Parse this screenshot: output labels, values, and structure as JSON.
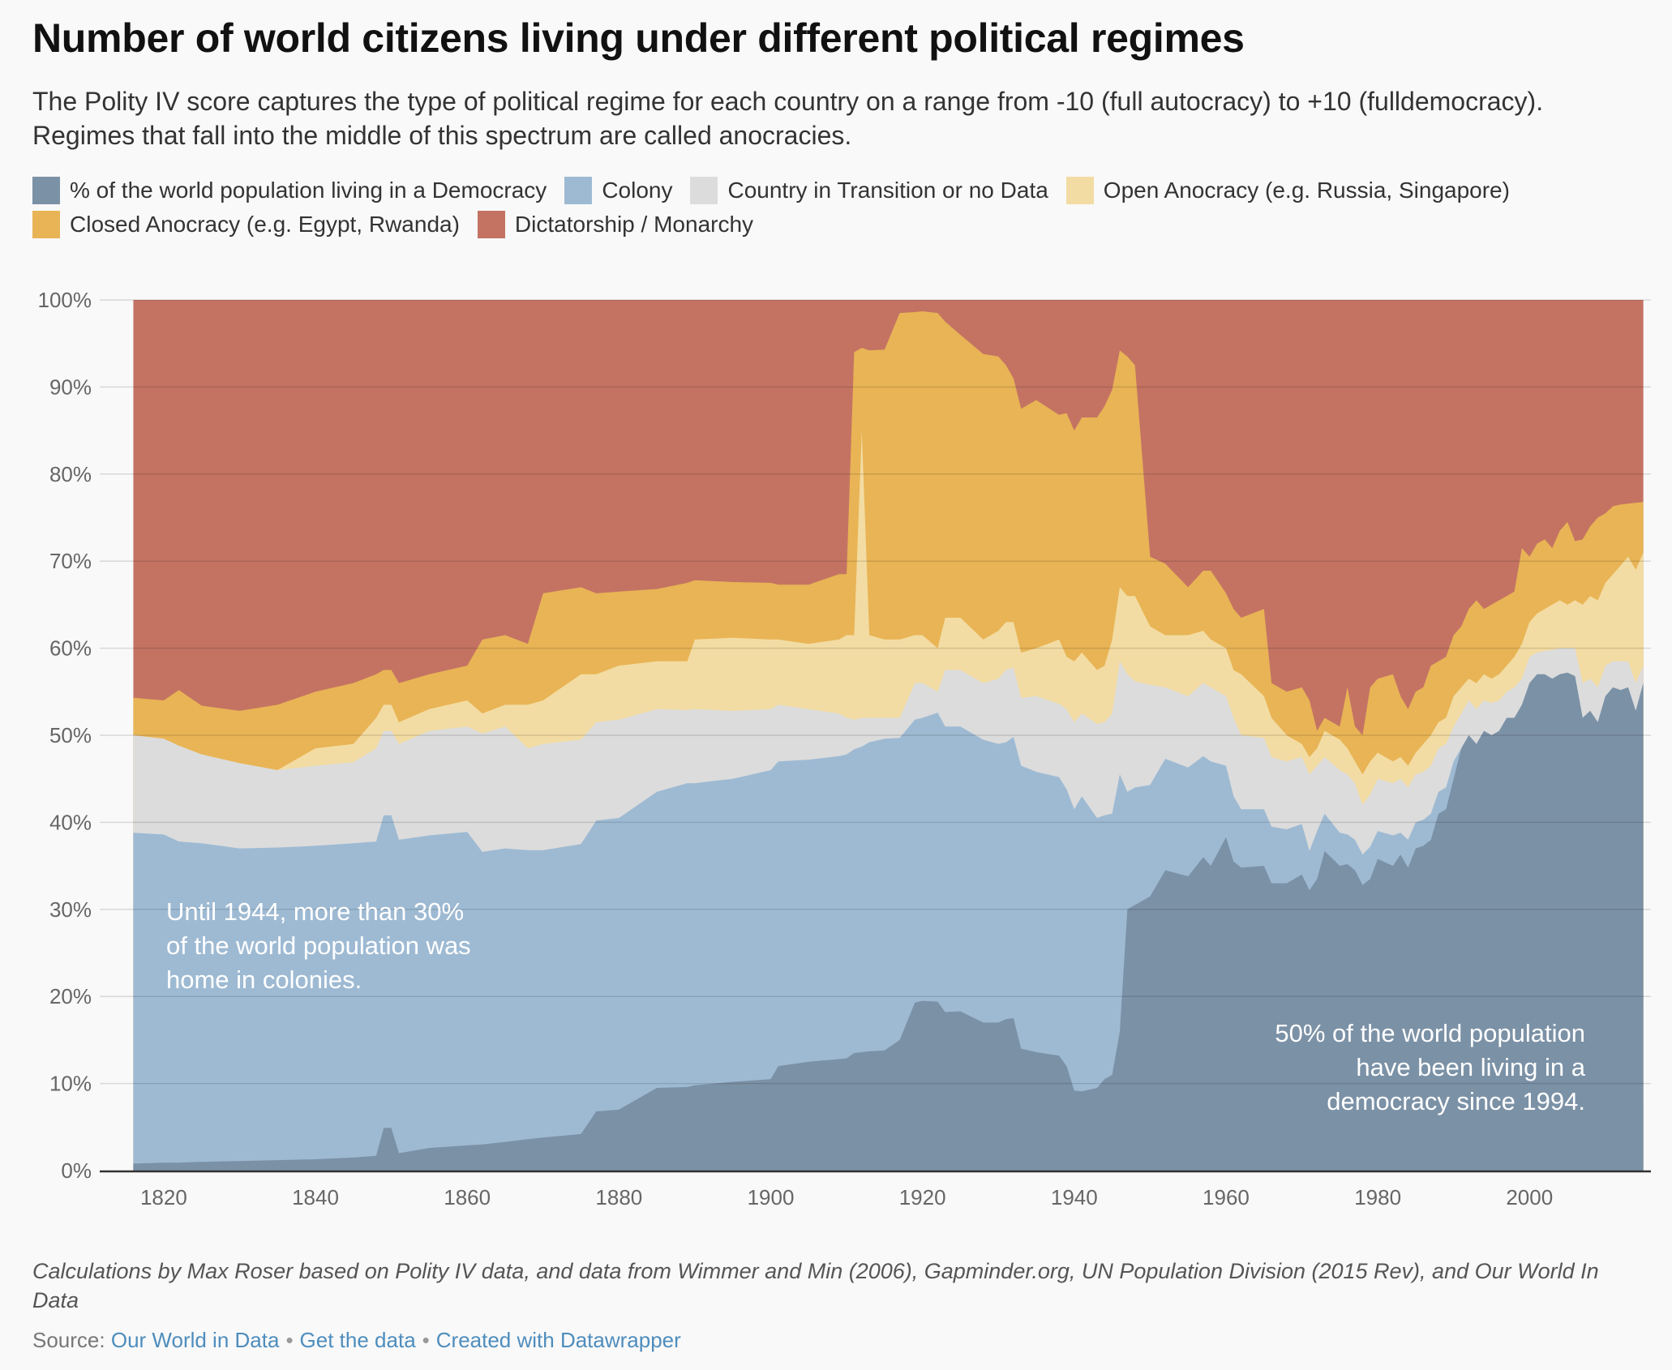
{
  "header": {
    "title": "Number of world citizens living under different political regimes",
    "subtitle": "The Polity IV score captures the type of political regime for each country on a range from -10 (full autocracy) to +10 (fulldemocracy). Regimes that fall into the middle of this spectrum are called anocracies."
  },
  "legend": [
    {
      "label": "% of the world population living in a Democracy",
      "color": "#7b91a6"
    },
    {
      "label": "Colony",
      "color": "#9ebad3"
    },
    {
      "label": "Country in Transition or no Data",
      "color": "#dcdcdc"
    },
    {
      "label": "Open Anocracy (e.g. Russia, Singapore)",
      "color": "#f3dca3"
    },
    {
      "label": "Closed Anocracy (e.g. Egypt, Rwanda)",
      "color": "#e8b455"
    },
    {
      "label": "Dictatorship / Monarchy",
      "color": "#c47363"
    }
  ],
  "annotations": {
    "left": "Until 1944, more than 30% of the world population was home in colonies.",
    "right": "50% of the world population have been living in a democracy since 1994."
  },
  "footer": {
    "notes": "Calculations by Max Roser based on Polity IV data, and data from Wimmer and Min (2006), Gapminder.org, UN Population Division (2015 Rev), and Our World In Data",
    "source_prefix": "Source:",
    "source_link": "Our World in Data",
    "get_data": "Get the data",
    "created_with": "Created with Datawrapper"
  },
  "chart_data": {
    "type": "area",
    "stacked": true,
    "xlim": [
      1812,
      2016
    ],
    "ylim": [
      0,
      100
    ],
    "x_ticks": [
      1820,
      1840,
      1860,
      1880,
      1900,
      1920,
      1940,
      1960,
      1980,
      2000
    ],
    "y_ticks": [
      0,
      10,
      20,
      30,
      40,
      50,
      60,
      70,
      80,
      90,
      100
    ],
    "y_tick_labels": [
      "0%",
      "10%",
      "20%",
      "30%",
      "40%",
      "50%",
      "60%",
      "70%",
      "80%",
      "90%",
      "100%"
    ],
    "grid": true,
    "legend_position": "top",
    "boundaries_note": "cumulative top edges in percent for the first five series; Dictatorship / Monarchy fills up to 100",
    "x": [
      1816,
      1820,
      1822,
      1825,
      1830,
      1835,
      1840,
      1845,
      1848,
      1849,
      1850,
      1851,
      1855,
      1860,
      1862,
      1865,
      1868,
      1870,
      1875,
      1877,
      1880,
      1885,
      1889,
      1890,
      1895,
      1900,
      1901,
      1905,
      1909,
      1910,
      1911,
      1912,
      1913,
      1915,
      1917,
      1919,
      1920,
      1922,
      1923,
      1925,
      1928,
      1930,
      1931,
      1932,
      1933,
      1935,
      1938,
      1939,
      1940,
      1941,
      1943,
      1944,
      1945,
      1946,
      1947,
      1948,
      1950,
      1952,
      1955,
      1957,
      1958,
      1960,
      1961,
      1962,
      1965,
      1966,
      1968,
      1970,
      1971,
      1972,
      1973,
      1975,
      1976,
      1977,
      1978,
      1979,
      1980,
      1982,
      1983,
      1984,
      1985,
      1986,
      1987,
      1988,
      1989,
      1990,
      1991,
      1992,
      1993,
      1994,
      1995,
      1996,
      1997,
      1998,
      1999,
      2000,
      2001,
      2002,
      2003,
      2004,
      2005,
      2006,
      2007,
      2008,
      2009,
      2010,
      2011,
      2012,
      2013,
      2014,
      2015
    ],
    "series": [
      {
        "name": "% of the world population living in a Democracy",
        "values": [
          0.8,
          0.9,
          0.9,
          1.0,
          1.1,
          1.2,
          1.3,
          1.5,
          1.7,
          4.9,
          4.9,
          2.0,
          2.6,
          2.9,
          3.0,
          3.3,
          3.6,
          3.8,
          4.2,
          6.8,
          7.0,
          9.5,
          9.6,
          9.8,
          10.2,
          10.5,
          12.0,
          12.5,
          12.8,
          12.9,
          13.5,
          13.6,
          13.7,
          13.8,
          15.0,
          19.3,
          19.5,
          19.4,
          18.2,
          18.3,
          17.0,
          17.0,
          17.4,
          17.5,
          14.0,
          13.6,
          13.2,
          12.0,
          9.2,
          9.1,
          9.5,
          10.5,
          11.0,
          16.0,
          30.0,
          30.5,
          31.5,
          34.5,
          33.8,
          36.0,
          35.0,
          38.3,
          35.5,
          34.8,
          35.0,
          33.0,
          33.0,
          34.0,
          32.2,
          33.5,
          36.7,
          35.0,
          35.2,
          34.5,
          32.8,
          33.5,
          35.8,
          35.0,
          36.3,
          34.8,
          37.0,
          37.3,
          38.0,
          41.0,
          41.5,
          45.0,
          48.5,
          50.0,
          49.0,
          50.5,
          50.0,
          50.5,
          52.0,
          52.0,
          53.5,
          56.0,
          57.0,
          57.0,
          56.5,
          57.0,
          57.2,
          56.8,
          52.0,
          52.8,
          51.5,
          54.5,
          55.5,
          55.2,
          55.5,
          52.8,
          56.0
        ]
      },
      {
        "name": "Colony",
        "values": [
          38.8,
          38.6,
          37.8,
          37.6,
          37.0,
          37.1,
          37.3,
          37.6,
          37.8,
          40.8,
          40.8,
          38.0,
          38.5,
          38.9,
          36.6,
          37.0,
          36.8,
          36.8,
          37.5,
          40.2,
          40.5,
          43.5,
          44.5,
          44.5,
          45.0,
          46.0,
          47.0,
          47.2,
          47.6,
          47.8,
          48.4,
          48.7,
          49.2,
          49.6,
          49.7,
          51.8,
          52.0,
          52.6,
          51.0,
          51.0,
          49.5,
          49.0,
          49.2,
          49.8,
          46.5,
          45.8,
          45.2,
          43.8,
          41.5,
          43.0,
          40.5,
          40.8,
          41.0,
          45.5,
          43.5,
          44.0,
          44.3,
          47.3,
          46.3,
          47.6,
          47.0,
          46.5,
          43.0,
          41.5,
          41.5,
          39.5,
          39.2,
          39.8,
          36.7,
          39.0,
          41.0,
          38.8,
          38.6,
          38.0,
          36.3,
          37.2,
          39.0,
          38.5,
          38.8,
          38.0,
          40.0,
          40.3,
          41.0,
          43.5,
          44.0,
          47.0,
          48.5,
          50.0,
          49.0,
          50.5,
          50.0,
          50.5,
          52.0,
          52.0,
          53.5,
          56.0,
          57.0,
          57.0,
          56.5,
          57.0,
          57.2,
          56.8,
          52.0,
          52.8,
          51.5,
          54.5,
          55.5,
          55.2,
          55.5,
          52.8,
          56.0
        ]
      },
      {
        "name": "Country in Transition or no Data",
        "values": [
          50.0,
          49.6,
          48.8,
          47.8,
          46.8,
          46.0,
          46.5,
          46.9,
          48.5,
          50.5,
          50.5,
          49.0,
          50.5,
          51.0,
          50.2,
          51.0,
          48.5,
          49.0,
          49.5,
          51.5,
          51.8,
          53.0,
          52.9,
          53.0,
          52.8,
          53.0,
          53.5,
          53.0,
          52.5,
          52.0,
          51.8,
          52.0,
          52.0,
          52.0,
          52.0,
          56.0,
          56.0,
          55.0,
          57.5,
          57.5,
          56.0,
          56.5,
          57.5,
          57.8,
          54.3,
          54.5,
          53.6,
          53.0,
          51.5,
          52.5,
          51.3,
          51.5,
          52.5,
          58.5,
          57.0,
          56.2,
          55.8,
          55.5,
          54.5,
          56.0,
          55.5,
          54.5,
          52.0,
          50.0,
          49.7,
          47.5,
          47.0,
          47.5,
          45.5,
          46.5,
          47.5,
          46.0,
          45.5,
          44.5,
          42.0,
          43.2,
          45.0,
          44.5,
          45.0,
          44.0,
          45.5,
          45.8,
          46.5,
          48.5,
          49.0,
          51.0,
          52.5,
          54.0,
          53.0,
          54.0,
          53.7,
          54.0,
          55.0,
          55.5,
          56.5,
          59.0,
          59.5,
          59.7,
          59.8,
          60.0,
          60.0,
          60.0,
          56.0,
          56.5,
          55.5,
          58.0,
          58.5,
          58.5,
          58.5,
          56.0,
          58.0
        ]
      },
      {
        "name": "Open Anocracy (e.g. Russia, Singapore)",
        "values": [
          50.0,
          49.6,
          48.8,
          47.8,
          46.8,
          46.0,
          48.5,
          49.0,
          52.0,
          53.5,
          53.5,
          51.5,
          53.0,
          54.0,
          52.5,
          53.5,
          53.5,
          54.0,
          57.0,
          57.0,
          58.0,
          58.5,
          58.5,
          61.0,
          61.2,
          61.0,
          61.0,
          60.5,
          61.0,
          61.5,
          61.5,
          85.0,
          61.5,
          61.0,
          61.0,
          61.5,
          61.5,
          60.0,
          63.5,
          63.5,
          61.0,
          62.0,
          63.0,
          63.0,
          59.5,
          60.0,
          61.0,
          59.0,
          58.5,
          59.5,
          57.5,
          58.0,
          61.0,
          67.0,
          66.0,
          66.0,
          62.5,
          61.5,
          61.5,
          62.0,
          61.0,
          60.0,
          57.5,
          57.0,
          54.5,
          52.0,
          50.0,
          49.0,
          47.5,
          48.5,
          50.5,
          49.5,
          48.5,
          47.0,
          45.5,
          47.0,
          48.0,
          47.0,
          47.5,
          46.5,
          48.0,
          49.0,
          50.0,
          51.5,
          52.0,
          54.5,
          55.5,
          56.5,
          56.0,
          57.0,
          56.5,
          57.0,
          58.0,
          59.0,
          60.5,
          63.0,
          64.0,
          64.5,
          65.0,
          65.5,
          65.0,
          65.5,
          65.0,
          66.0,
          65.5,
          67.5,
          68.5,
          69.5,
          70.5,
          69.0,
          71.0
        ]
      },
      {
        "name": "Closed Anocracy (e.g. Egypt, Rwanda)",
        "values": [
          54.3,
          54.0,
          55.2,
          53.4,
          52.8,
          53.5,
          55.0,
          56.0,
          57.0,
          57.5,
          57.5,
          56.0,
          57.0,
          58.0,
          61.0,
          61.5,
          60.5,
          66.3,
          67.0,
          66.3,
          66.5,
          66.8,
          67.5,
          67.8,
          67.6,
          67.5,
          67.3,
          67.3,
          68.5,
          68.5,
          94.0,
          94.5,
          94.2,
          94.3,
          98.5,
          98.6,
          98.7,
          98.5,
          97.5,
          96.0,
          93.8,
          93.5,
          92.5,
          91.0,
          87.5,
          88.5,
          86.8,
          87.0,
          85.0,
          86.5,
          86.5,
          87.8,
          89.7,
          94.2,
          93.5,
          92.5,
          70.5,
          69.7,
          67.0,
          68.9,
          68.9,
          66.3,
          64.5,
          63.5,
          64.5,
          56.0,
          55.0,
          55.5,
          54.0,
          50.5,
          52.0,
          51.0,
          55.5,
          51.0,
          50.0,
          55.5,
          56.5,
          57.0,
          54.5,
          53.0,
          55.0,
          55.5,
          58.0,
          58.5,
          59.0,
          61.5,
          62.5,
          64.5,
          65.5,
          64.5,
          65.0,
          65.5,
          66.0,
          66.5,
          71.5,
          70.5,
          72.0,
          72.5,
          71.5,
          73.5,
          74.5,
          72.3,
          72.5,
          74.0,
          75.0,
          75.5,
          76.3,
          76.5,
          76.6,
          76.7,
          76.8
        ]
      },
      {
        "name": "Dictatorship / Monarchy",
        "values_note": "remainder to 100%"
      }
    ]
  }
}
